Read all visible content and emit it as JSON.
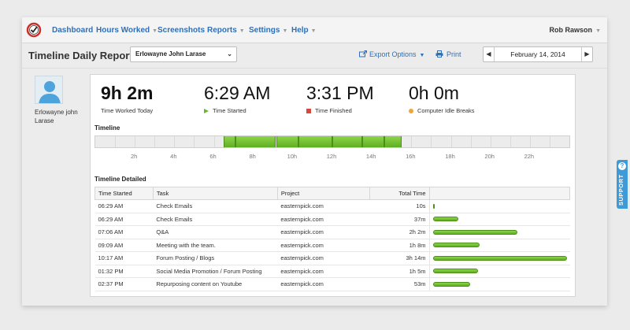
{
  "nav": {
    "items": [
      {
        "label": "Dashboard",
        "dropdown": false
      },
      {
        "label": "Hours Worked",
        "dropdown": true
      },
      {
        "label": "Screenshots",
        "dropdown": false
      },
      {
        "label": "Reports",
        "dropdown": true
      },
      {
        "label": "Settings",
        "dropdown": true
      },
      {
        "label": "Help",
        "dropdown": true
      }
    ],
    "user": "Rob Rawson"
  },
  "header": {
    "title": "Timeline Daily Report",
    "user_select": "Erlowayne John Larase",
    "export_label": "Export Options",
    "print_label": "Print",
    "date": "February 14, 2014"
  },
  "profile": {
    "name": "Erlowayne john Larase"
  },
  "stats": [
    {
      "value": "9h 2m",
      "label": "Time Worked Today",
      "marker": "none"
    },
    {
      "value": "6:29 AM",
      "label": "Time Started",
      "marker": "triangle"
    },
    {
      "value": "3:31 PM",
      "label": "Time Finished",
      "marker": "square"
    },
    {
      "value": "0h 0m",
      "label": "Computer Idle Breaks",
      "marker": "dot"
    }
  ],
  "timeline": {
    "heading": "Timeline",
    "hours_start": 0,
    "hours_end": 24,
    "tick_labels": [
      "2h",
      "4h",
      "6h",
      "8h",
      "10h",
      "12h",
      "14h",
      "16h",
      "18h",
      "20h",
      "22h"
    ],
    "tick_hours": [
      2,
      4,
      6,
      8,
      10,
      12,
      14,
      16,
      18,
      20,
      22
    ],
    "segments": [
      {
        "start": 6.48,
        "end": 7.1
      },
      {
        "start": 7.1,
        "end": 9.15
      },
      {
        "start": 9.15,
        "end": 10.28
      },
      {
        "start": 10.28,
        "end": 12.0
      },
      {
        "start": 12.0,
        "end": 13.53
      },
      {
        "start": 13.53,
        "end": 14.62
      },
      {
        "start": 14.62,
        "end": 15.52
      }
    ]
  },
  "detail": {
    "heading": "Timeline Detailed",
    "columns": [
      "Time Started",
      "Task",
      "Project",
      "Total Time"
    ],
    "rows": [
      {
        "start": "06:29 AM",
        "task": "Check Emails",
        "project": "easternpick.com",
        "total": "10s",
        "fraction": 0.01
      },
      {
        "start": "06:29 AM",
        "task": "Check Emails",
        "project": "easternpick.com",
        "total": "37m",
        "fraction": 0.19
      },
      {
        "start": "07:06 AM",
        "task": "Q&A",
        "project": "easternpick.com",
        "total": "2h 2m",
        "fraction": 0.63
      },
      {
        "start": "09:09 AM",
        "task": "Meeting with the team.",
        "project": "easternpick.com",
        "total": "1h 8m",
        "fraction": 0.35
      },
      {
        "start": "10:17 AM",
        "task": "Forum Posting / Blogs",
        "project": "easternpick.com",
        "total": "3h 14m",
        "fraction": 1.0
      },
      {
        "start": "01:32 PM",
        "task": "Social Media Promotion / Forum Posting",
        "project": "easternpick.com",
        "total": "1h 5m",
        "fraction": 0.34
      },
      {
        "start": "02:37 PM",
        "task": "Repurposing content on Youtube",
        "project": "easternpick.com",
        "total": "53m",
        "fraction": 0.28
      }
    ]
  },
  "support_label": "SUPPORT",
  "colors": {
    "accent_blue": "#2f6fb7",
    "green": "#6ab82a",
    "red": "#d9463b",
    "orange": "#f0a43a",
    "support_blue": "#3f9bd8"
  }
}
